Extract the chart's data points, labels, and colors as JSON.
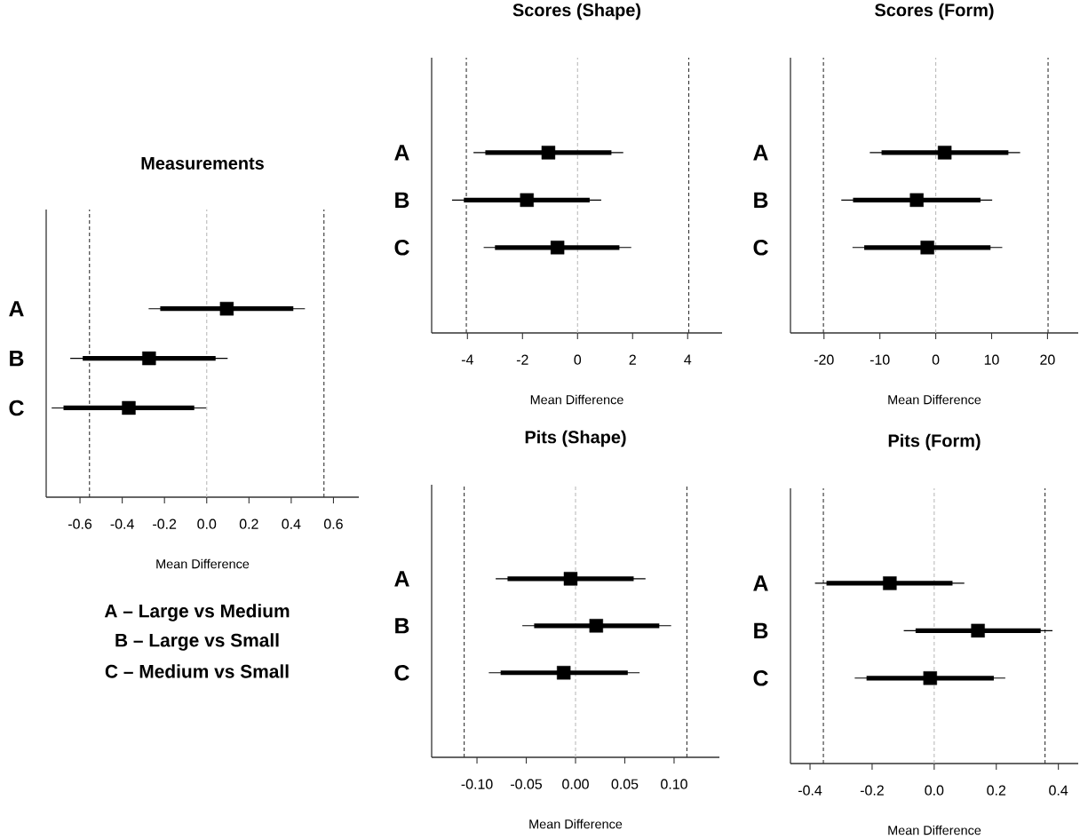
{
  "chart_data": [
    {
      "type": "scatter",
      "title": "Measurements",
      "xlabel": "Mean Difference",
      "orientation": "horizontal",
      "categories": [
        "A",
        "B",
        "C"
      ],
      "xlim": [
        -0.76,
        0.72
      ],
      "xticks": [
        -0.6,
        -0.4,
        -0.2,
        {
          "value": 0,
          "label": "0.0"
        },
        0.2,
        0.4,
        0.6
      ],
      "ref_lines": [
        {
          "axis": "x",
          "value": -0.555,
          "color": "#333333",
          "line_style": "dashed"
        },
        {
          "axis": "x",
          "value": 0,
          "color": "#bbbbbb",
          "line_style": "dashed"
        },
        {
          "axis": "x",
          "value": 0.555,
          "color": "#333333",
          "line_style": "dashed"
        }
      ],
      "annotations": [
        "A – Large vs Medium",
        "B – Large vs Small",
        "C – Medium vs Small"
      ],
      "series": [
        {
          "type": "bar",
          "color": "#000000",
          "base": [
            -0.22,
            -0.587,
            -0.678
          ],
          "values": [
            0.63,
            0.629,
            0.619
          ]
        },
        {
          "color": "#000000",
          "marker": "square",
          "values": [
            0.095,
            -0.273,
            -0.369
          ],
          "errors": [
            [
              -0.275,
              0.465
            ],
            [
              -0.646,
              0.099
            ],
            [
              -0.734,
              -0.003
            ]
          ]
        }
      ]
    },
    {
      "type": "scatter",
      "title": "Scores (Shape)",
      "xlabel": "Mean Difference",
      "orientation": "horizontal",
      "categories": [
        "A",
        "B",
        "C"
      ],
      "xlim": [
        -5.3,
        5.25
      ],
      "xticks": [
        -4,
        -2,
        0,
        2,
        4
      ],
      "ref_lines": [
        {
          "axis": "x",
          "value": -4.04,
          "color": "#333333",
          "line_style": "dashed"
        },
        {
          "axis": "x",
          "value": 0,
          "color": "#bbbbbb",
          "line_style": "dashed"
        },
        {
          "axis": "x",
          "value": 4.04,
          "color": "#333333",
          "line_style": "dashed"
        }
      ],
      "series": [
        {
          "type": "bar",
          "color": "#000000",
          "base": [
            -3.35,
            -4.13,
            -3.0
          ],
          "values": [
            4.58,
            4.57,
            4.52
          ]
        },
        {
          "color": "#000000",
          "marker": "square",
          "values": [
            -1.06,
            -1.84,
            -0.73
          ],
          "errors": [
            [
              -3.78,
              1.66
            ],
            [
              -4.56,
              0.86
            ],
            [
              -3.41,
              1.95
            ]
          ]
        }
      ]
    },
    {
      "type": "scatter",
      "title": "Scores (Form)",
      "xlabel": "Mean Difference",
      "orientation": "horizontal",
      "categories": [
        "A",
        "B",
        "C"
      ],
      "xlim": [
        -26,
        25.5
      ],
      "xticks": [
        -20,
        -10,
        0,
        10,
        20
      ],
      "ref_lines": [
        {
          "axis": "x",
          "value": -20.1,
          "color": "#333333",
          "line_style": "dashed"
        },
        {
          "axis": "x",
          "value": 0,
          "color": "#bbbbbb",
          "line_style": "dashed"
        },
        {
          "axis": "x",
          "value": 20.1,
          "color": "#333333",
          "line_style": "dashed"
        }
      ],
      "series": [
        {
          "type": "bar",
          "color": "#000000",
          "base": [
            -9.7,
            -14.8,
            -12.8
          ],
          "values": [
            22.7,
            22.8,
            22.6
          ]
        },
        {
          "color": "#000000",
          "marker": "square",
          "values": [
            1.6,
            -3.4,
            -1.5
          ],
          "errors": [
            [
              -11.8,
              15.1
            ],
            [
              -16.9,
              10.1
            ],
            [
              -14.9,
              11.9
            ]
          ]
        }
      ]
    },
    {
      "type": "scatter",
      "title": "Pits (Shape)",
      "xlabel": "Mean Difference",
      "orientation": "horizontal",
      "categories": [
        "A",
        "B",
        "C"
      ],
      "xlim": [
        -0.146,
        0.146
      ],
      "xticks": [
        {
          "value": -0.1,
          "label": "-0.10"
        },
        -0.05,
        {
          "value": 0,
          "label": "0.00"
        },
        0.05,
        {
          "value": 0.1,
          "label": "0.10"
        }
      ],
      "ref_lines": [
        {
          "axis": "x",
          "value": -0.113,
          "color": "#333333",
          "line_style": "dashed"
        },
        {
          "axis": "x",
          "value": 0,
          "color": "#bbbbbb",
          "line_style": "dashed"
        },
        {
          "axis": "x",
          "value": 0.113,
          "color": "#333333",
          "line_style": "dashed"
        }
      ],
      "series": [
        {
          "type": "bar",
          "color": "#000000",
          "base": [
            -0.069,
            -0.042,
            -0.076
          ],
          "values": [
            0.128,
            0.127,
            0.129
          ]
        },
        {
          "color": "#000000",
          "marker": "square",
          "values": [
            -0.005,
            0.021,
            -0.012
          ],
          "errors": [
            [
              -0.081,
              0.071
            ],
            [
              -0.054,
              0.097
            ],
            [
              -0.088,
              0.065
            ]
          ]
        }
      ]
    },
    {
      "type": "scatter",
      "title": "Pits (Form)",
      "xlabel": "Mean Difference",
      "orientation": "horizontal",
      "categories": [
        "A",
        "B",
        "C"
      ],
      "xlim": [
        -0.463,
        0.464
      ],
      "xticks": [
        -0.4,
        -0.2,
        {
          "value": 0,
          "label": "0.0"
        },
        0.2,
        0.4
      ],
      "ref_lines": [
        {
          "axis": "x",
          "value": -0.357,
          "color": "#333333",
          "line_style": "dashed"
        },
        {
          "axis": "x",
          "value": 0,
          "color": "#bbbbbb",
          "line_style": "dashed"
        },
        {
          "axis": "x",
          "value": 0.357,
          "color": "#333333",
          "line_style": "dashed"
        }
      ],
      "series": [
        {
          "type": "bar",
          "color": "#000000",
          "base": [
            -0.347,
            -0.06,
            -0.218
          ],
          "values": [
            0.406,
            0.403,
            0.41
          ]
        },
        {
          "color": "#000000",
          "marker": "square",
          "values": [
            -0.143,
            0.141,
            -0.013
          ],
          "errors": [
            [
              -0.384,
              0.097
            ],
            [
              -0.098,
              0.381
            ],
            [
              -0.256,
              0.229
            ]
          ]
        }
      ]
    }
  ]
}
